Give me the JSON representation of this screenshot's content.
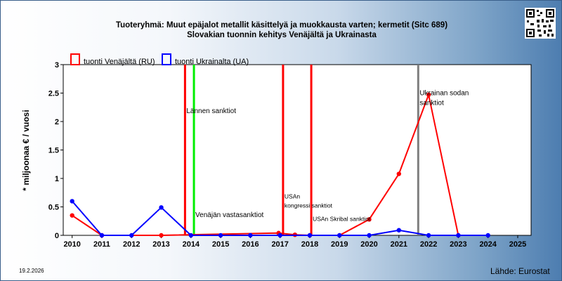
{
  "chart_data": {
    "type": "line",
    "title": "Tuoteryhmä: Muut epäjalot metallit käsittelyä ja muokkausta varten; kermetit (Sitc 689)",
    "subtitle": "Slovakian tuonnin kehitys  Venäjältä ja Ukrainasta",
    "xlabel": "",
    "ylabel": "* miljoonaa € / vuosi",
    "x": [
      2010,
      2011,
      2012,
      2013,
      2014,
      2015,
      2016,
      2017,
      2018,
      2019,
      2020,
      2021,
      2022,
      2023,
      2024,
      2025
    ],
    "x_ticks": [
      "2010",
      "2011",
      "2012",
      "2013",
      "2014",
      "2015",
      "2016",
      "2017",
      "2018",
      "2019",
      "2020",
      "2021",
      "2022",
      "2023",
      "2024",
      "2025"
    ],
    "y_ticks": [
      "0",
      "0.5",
      "1",
      "1.5",
      "2",
      "2.5",
      "3"
    ],
    "xlim": [
      2009.7,
      2025.45
    ],
    "ylim": [
      0,
      3
    ],
    "grid": false,
    "legend_position": "top-left",
    "series": [
      {
        "name": "tuonti Venäjältä (RU)",
        "color": "#ff0000",
        "points": [
          [
            2010,
            0.35
          ],
          [
            2011,
            0
          ],
          [
            2013,
            0
          ],
          [
            2016.95,
            0.04
          ],
          [
            2017.5,
            0.01
          ],
          [
            2018,
            0
          ],
          [
            2019,
            0
          ],
          [
            2020,
            0.28
          ],
          [
            2021,
            1.08
          ],
          [
            2022,
            2.47
          ],
          [
            2023,
            0
          ]
        ]
      },
      {
        "name": "tuonti Ukrainalta (UA)",
        "color": "#0000ff",
        "points": [
          [
            2010,
            0.6
          ],
          [
            2011,
            0
          ],
          [
            2012,
            0
          ],
          [
            2013,
            0.49
          ],
          [
            2014,
            0
          ],
          [
            2015,
            0
          ],
          [
            2016,
            0
          ],
          [
            2017,
            0
          ],
          [
            2018,
            0
          ],
          [
            2019,
            0
          ],
          [
            2020,
            0
          ],
          [
            2021,
            0.09
          ],
          [
            2022,
            0
          ],
          [
            2023,
            0
          ],
          [
            2024,
            0
          ]
        ]
      }
    ],
    "events": [
      {
        "x": 2013.8,
        "color": "#ff0000",
        "label": "Lännen sanktiot",
        "label_y": 2.2
      },
      {
        "x": 2014.1,
        "color": "#00ee00",
        "label": "Venäjän vastasanktiot",
        "label_y": 0.37
      },
      {
        "x": 2017.1,
        "color": "#ff0000",
        "label": "USAn kongressi sanktiot",
        "label_y": 0.55
      },
      {
        "x": 2018.05,
        "color": "#ff0000",
        "label": "USAn Skribal sanktiot",
        "label_y": 0.3
      },
      {
        "x": 2021.65,
        "color": "#7f7f7f",
        "label": "Ukrainan sodan sanktiot",
        "label_y": 2.45
      }
    ]
  },
  "legend": [
    {
      "label": "tuonti Venäjältä (RU)",
      "color": "#ff0000"
    },
    {
      "label": "tuonti Ukrainalta (UA)",
      "color": "#0000ff"
    }
  ],
  "date": "19.2.2026",
  "source": "Lähde: Eurostat"
}
